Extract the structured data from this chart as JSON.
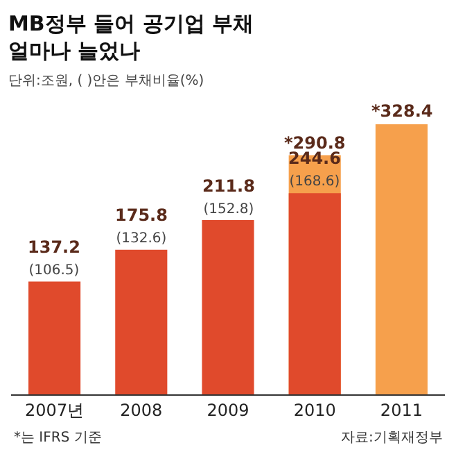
{
  "chart_data": {
    "type": "bar",
    "title": "MB정부 들어 공기업 부채\n얼마나 늘었나",
    "subtitle": "단위:조원, ( )안은 부채비율(%)",
    "categories": [
      "2007년",
      "2008",
      "2009",
      "2010",
      "2011"
    ],
    "tick_labels": "x",
    "series": [
      {
        "color": "#f6a04c",
        "values": [
          null,
          null,
          null,
          290.8,
          328.4
        ],
        "value_labels": [
          null,
          null,
          null,
          "*290.8",
          "*328.4"
        ]
      },
      {
        "color": "#e04a2c",
        "values": [
          137.2,
          175.8,
          211.8,
          244.6,
          null
        ],
        "value_labels": [
          "137.2\n(106.5)",
          "175.8\n(132.6)",
          "211.8\n(152.8)",
          "244.6\n(168.6)",
          null
        ]
      }
    ],
    "annotations": [
      "*는 IFRS 기준",
      "자료:기획재정부"
    ]
  }
}
